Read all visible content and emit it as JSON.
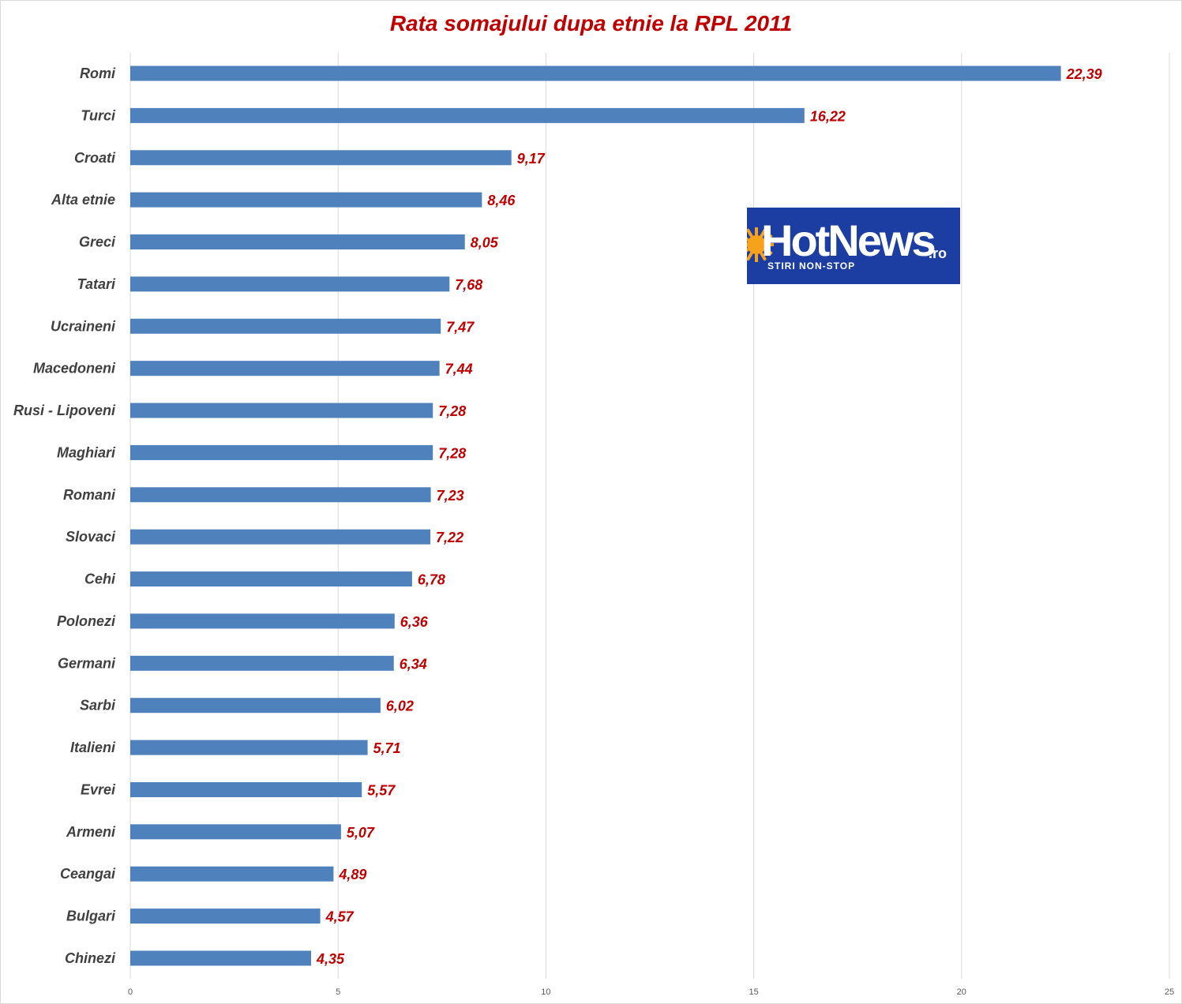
{
  "chart_data": {
    "type": "bar",
    "orientation": "horizontal",
    "title": "Rata somajului dupa etnie la RPL 2011",
    "categories": [
      "Romi",
      "Turci",
      "Croati",
      "Alta etnie",
      "Greci",
      "Tatari",
      "Ucraineni",
      "Macedoneni",
      "Rusi - Lipoveni",
      "Maghiari",
      "Romani",
      "Slovaci",
      "Cehi",
      "Polonezi",
      "Germani",
      "Sarbi",
      "Italieni",
      "Evrei",
      "Armeni",
      "Ceangai",
      "Bulgari",
      "Chinezi"
    ],
    "values": [
      22.39,
      16.22,
      9.17,
      8.46,
      8.05,
      7.68,
      7.47,
      7.44,
      7.28,
      7.28,
      7.23,
      7.22,
      6.78,
      6.36,
      6.34,
      6.02,
      5.71,
      5.57,
      5.07,
      4.89,
      4.57,
      4.35
    ],
    "data_labels": [
      "22,39",
      "16,22",
      "9,17",
      "8,46",
      "8,05",
      "7,68",
      "7,47",
      "7,44",
      "7,28",
      "7,28",
      "7,23",
      "7,22",
      "6,78",
      "6,36",
      "6,34",
      "6,02",
      "5,71",
      "5,57",
      "5,07",
      "4,89",
      "4,57",
      "4,35"
    ],
    "xlim": [
      0,
      25
    ],
    "x_ticks": [
      0,
      5,
      10,
      15,
      20,
      25
    ],
    "grid": true,
    "legend": "none",
    "xlabel": "",
    "ylabel": ""
  },
  "colors": {
    "bar": "#4f81bd",
    "title": "#c00000",
    "data_label": "#c00000",
    "category_label": "#404040",
    "gridline": "#d9d9d9"
  },
  "logo": {
    "brand": "HotNews",
    "tld": ".ro",
    "tagline": "STIRI NON-STOP",
    "icon": "sun-icon",
    "background": "#1c3ea3",
    "sun_color": "#f7a21b"
  }
}
